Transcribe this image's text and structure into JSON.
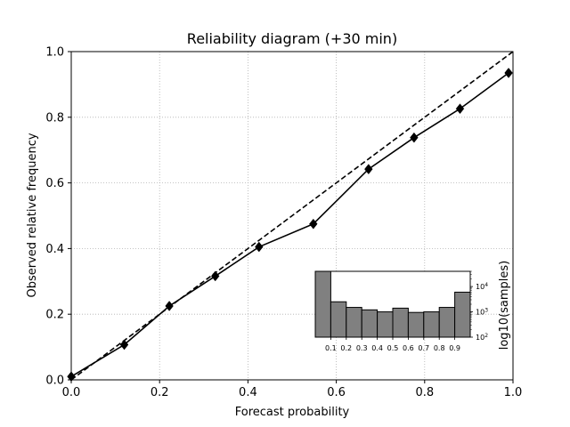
{
  "chart_data": {
    "type": "line",
    "title": "Reliability diagram (+30 min)",
    "xlabel": "Forecast probability",
    "ylabel": "Observed relative frequency",
    "xlim": [
      0.0,
      1.0
    ],
    "ylim": [
      0.0,
      1.0
    ],
    "xticks": [
      "0.0",
      "0.2",
      "0.4",
      "0.6",
      "0.8",
      "1.0"
    ],
    "yticks": [
      "0.0",
      "0.2",
      "0.4",
      "0.6",
      "0.8",
      "1.0"
    ],
    "grid": true,
    "series": [
      {
        "style": "solid",
        "marker": "diamond",
        "color": "#000000",
        "x": [
          0.0,
          0.12,
          0.222,
          0.326,
          0.425,
          0.548,
          0.673,
          0.776,
          0.88,
          0.99
        ],
        "y": [
          0.01,
          0.107,
          0.225,
          0.316,
          0.405,
          0.475,
          0.642,
          0.738,
          0.826,
          0.935
        ]
      }
    ],
    "diagonal": {
      "style": "dashed",
      "color": "#000000",
      "x": [
        0.0,
        1.0
      ],
      "y": [
        0.0,
        1.0
      ]
    },
    "inset": {
      "type": "bar",
      "scale": "log",
      "ylabel": "log10(samples)",
      "xticks": [
        "0.1",
        "0.2",
        "0.3",
        "0.4",
        "0.5",
        "0.6",
        "0.7",
        "0.8",
        "0.9"
      ],
      "ytick_bases": [
        "10",
        "10",
        "10"
      ],
      "ytick_exps": [
        "2",
        "3",
        "4"
      ],
      "bin_edges": [
        0.0,
        0.1,
        0.2,
        0.3,
        0.4,
        0.5,
        0.6,
        0.7,
        0.8,
        0.9,
        1.0
      ],
      "values": [
        100000,
        2500,
        1500,
        1200,
        1000,
        1400,
        950,
        1000,
        1500,
        6000
      ],
      "ylim": [
        100,
        40000
      ],
      "bar_color": "#808080",
      "edge_color": "#000000"
    }
  }
}
